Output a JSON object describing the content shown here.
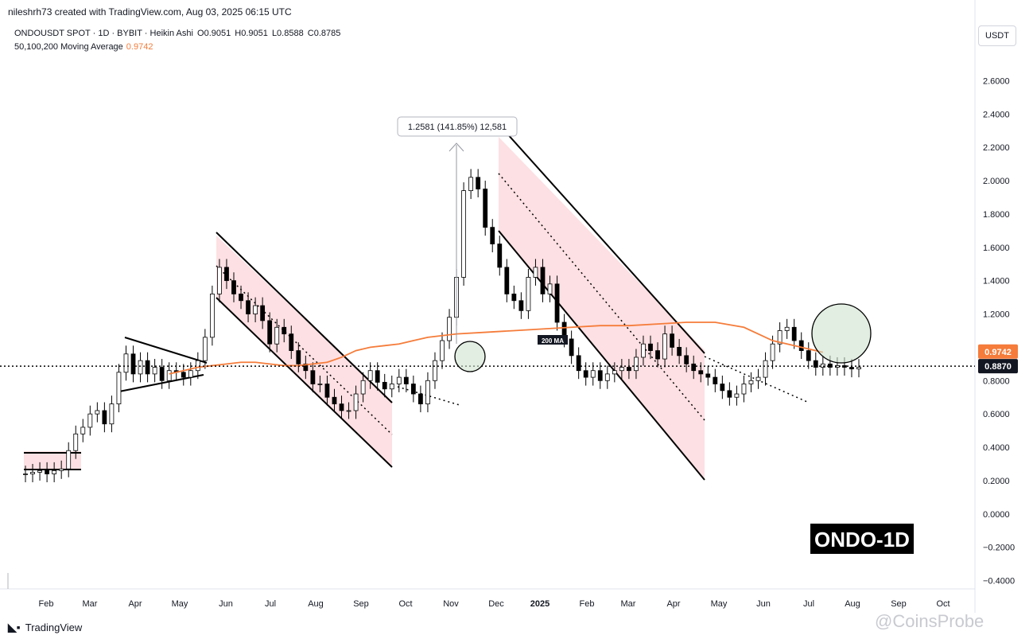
{
  "header": {
    "attribution": "nileshrh73 created with TradingView.com, Aug 03, 2025 06:15 UTC",
    "symbol_line": "ONDOUSDT SPOT · 1D · BYBIT · Heikin Ashi",
    "ohlc": [
      "O0.9051",
      "H0.9051",
      "L0.8588",
      "C0.8785"
    ],
    "ma_label": "50,100,200 Moving Average",
    "ma_value": "0.9742",
    "currency_button": "USDT"
  },
  "footer": {
    "logo_text": "TradingView",
    "watermark": "@CoinsProbe"
  },
  "colors": {
    "ma": "#f57c3a",
    "channel_fill": "#fde0e3",
    "circle_fill": "#cfe3cf",
    "price_tag": "#131722"
  },
  "chart_data": {
    "type": "candlestick",
    "ylim": [
      -0.45,
      2.75
    ],
    "y_ticks": [
      "2.6000",
      "2.4000",
      "2.2000",
      "2.0000",
      "1.8000",
      "1.6000",
      "1.4000",
      "1.2000",
      "1.0000",
      "0.8000",
      "0.6000",
      "0.4000",
      "0.2000",
      "0.0000",
      "−0.2000",
      "−0.4000"
    ],
    "x_labels": [
      "Feb",
      "Mar",
      "Apr",
      "May",
      "Jun",
      "Jul",
      "Aug",
      "Sep",
      "Oct",
      "Nov",
      "Dec",
      "2025",
      "Feb",
      "Mar",
      "Apr",
      "May",
      "Jun",
      "Jul",
      "Aug",
      "Sep",
      "Oct"
    ],
    "price_series": {
      "x": [
        0,
        5,
        10,
        15,
        20,
        25,
        30,
        35,
        40,
        45,
        50,
        55,
        60,
        65,
        70,
        75,
        80,
        85,
        90,
        95,
        100,
        105,
        110,
        115,
        120,
        125,
        130,
        135,
        140,
        145,
        150,
        155,
        160,
        165,
        170,
        175,
        180,
        185,
        190,
        195,
        200,
        205,
        210,
        215,
        220,
        225,
        230,
        235,
        240,
        245,
        250,
        255,
        260,
        265,
        270,
        275,
        280,
        285,
        290,
        295,
        300,
        305,
        310,
        315,
        320,
        325,
        330,
        335,
        340,
        345,
        350,
        355,
        360,
        365,
        370,
        375,
        380,
        385,
        390,
        395,
        400,
        405,
        410,
        415,
        420,
        425,
        430,
        435,
        440,
        445,
        450,
        455,
        460,
        465,
        470,
        475,
        480,
        485,
        490,
        495,
        500,
        505,
        510,
        515,
        520,
        525,
        530,
        535,
        540,
        545,
        550,
        555,
        560,
        565,
        570,
        575,
        580
      ],
      "close": [
        0.24,
        0.25,
        0.26,
        0.24,
        0.26,
        0.27,
        0.38,
        0.48,
        0.52,
        0.6,
        0.62,
        0.54,
        0.66,
        0.85,
        0.96,
        0.84,
        0.92,
        0.84,
        0.88,
        0.8,
        0.86,
        0.85,
        0.82,
        0.86,
        0.92,
        1.06,
        1.32,
        1.48,
        1.4,
        1.32,
        1.28,
        1.2,
        1.25,
        1.16,
        1.02,
        1.12,
        1.08,
        0.98,
        0.9,
        0.86,
        0.78,
        0.78,
        0.7,
        0.66,
        0.62,
        0.62,
        0.72,
        0.8,
        0.86,
        0.79,
        0.75,
        0.78,
        0.82,
        0.78,
        0.72,
        0.66,
        0.8,
        0.92,
        1.04,
        1.18,
        1.42,
        1.94,
        2.02,
        1.95,
        1.72,
        1.62,
        1.48,
        1.32,
        1.28,
        1.22,
        1.42,
        1.48,
        1.32,
        1.38,
        1.15,
        1.05,
        0.95,
        0.86,
        0.82,
        0.86,
        0.8,
        0.84,
        0.86,
        0.88,
        0.86,
        0.94,
        1.02,
        0.98,
        0.93,
        1.08,
        1.0,
        0.95,
        0.9,
        0.86,
        0.84,
        0.82,
        0.78,
        0.74,
        0.7,
        0.72,
        0.78,
        0.8,
        0.82,
        0.92,
        1.02,
        1.1,
        1.12,
        1.04,
        0.98,
        0.92,
        0.88,
        0.9,
        0.88,
        0.89,
        0.88,
        0.87,
        0.88
      ]
    },
    "ma200": {
      "x": [
        100,
        110,
        120,
        130,
        140,
        150,
        160,
        170,
        180,
        190,
        200,
        210,
        220,
        230,
        240,
        250,
        260,
        270,
        280,
        300,
        320,
        340,
        360,
        380,
        400,
        420,
        440,
        460,
        480,
        500,
        520,
        540,
        555
      ],
      "y": [
        0.84,
        0.86,
        0.88,
        0.89,
        0.9,
        0.91,
        0.91,
        0.9,
        0.89,
        0.89,
        0.9,
        0.91,
        0.94,
        0.98,
        1.0,
        1.01,
        1.02,
        1.04,
        1.06,
        1.08,
        1.09,
        1.1,
        1.11,
        1.12,
        1.13,
        1.13,
        1.14,
        1.15,
        1.15,
        1.12,
        1.04,
        1.0,
        0.97
      ]
    },
    "annotations": {
      "measure_label": "1.2581 (141.85%) 12,581",
      "ma_tag": "200 MA",
      "price_labels": [
        {
          "value": "0.9742",
          "color": "#f57c3a"
        },
        {
          "value": "0.8870",
          "color": "#131722"
        }
      ],
      "title_badge": "ONDO-1D"
    }
  }
}
